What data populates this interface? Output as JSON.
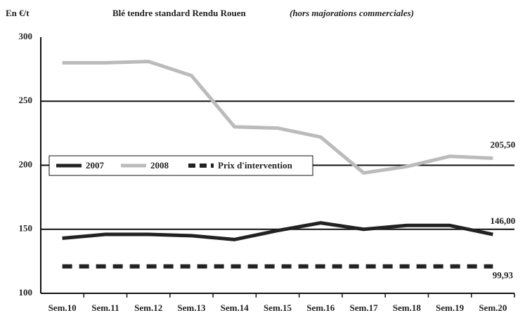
{
  "chart_data": {
    "type": "line",
    "title": "Blé tendre standard Rendu Rouen",
    "subtitle": "(hors majorations commerciales)",
    "y_label": "En €/t",
    "categories": [
      "Sem.10",
      "Sem.11",
      "Sem.12",
      "Sem.13",
      "Sem.14",
      "Sem.15",
      "Sem.16",
      "Sem.17",
      "Sem.18",
      "Sem.19",
      "Sem.20"
    ],
    "series": [
      {
        "name": "2007",
        "color": "#222222",
        "dashed": false,
        "values": [
          143,
          146,
          146,
          145,
          142,
          149,
          155,
          150,
          153,
          153,
          146.0
        ],
        "value_labels": [
          null,
          null,
          null,
          null,
          null,
          null,
          null,
          null,
          null,
          null,
          "146,00"
        ]
      },
      {
        "name": "2008",
        "color": "#bbbbbb",
        "dashed": false,
        "values": [
          280,
          280,
          281,
          270,
          230,
          229,
          222,
          194,
          199,
          207,
          205.5
        ],
        "value_labels": [
          null,
          null,
          null,
          null,
          null,
          null,
          null,
          null,
          null,
          null,
          "205,50"
        ]
      },
      {
        "name": "Prix d'intervention",
        "color": "#222222",
        "dashed": true,
        "values": [
          121,
          121,
          121,
          121,
          121,
          121,
          121,
          121,
          121,
          121,
          121
        ]
      }
    ],
    "annotations": [
      "99,93"
    ],
    "ylim": [
      100,
      300
    ],
    "yticks": [
      100,
      150,
      200,
      250,
      300
    ],
    "grid": true
  }
}
